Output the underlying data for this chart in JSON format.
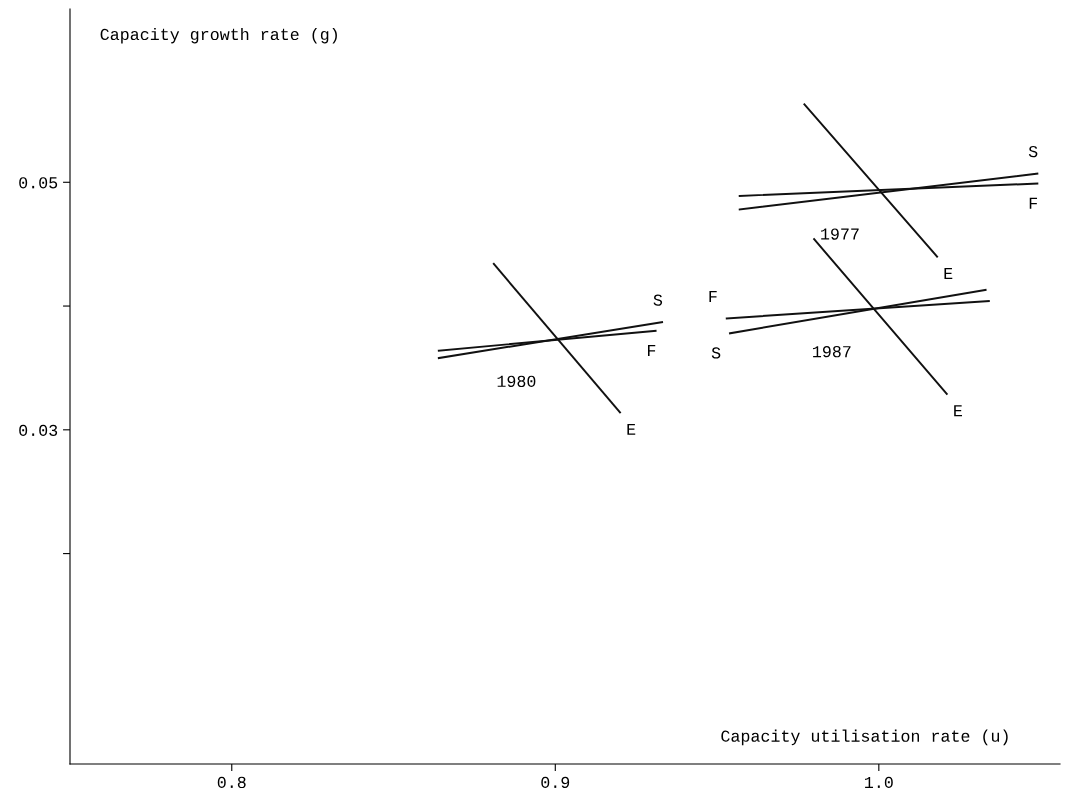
{
  "chart_data": {
    "type": "line",
    "xlabel": "Capacity utilisation rate (u)",
    "ylabel": "Capacity growth rate (g)",
    "xlim": [
      0.75,
      1.056
    ],
    "ylim": [
      0.003,
      0.064
    ],
    "xticks": [
      0.8,
      0.9,
      {
        "value": 1.0,
        "label": "1.0"
      }
    ],
    "yticks": [
      {
        "value": 0.02,
        "label": null
      },
      0.03,
      {
        "value": 0.04,
        "label": null
      },
      0.05
    ],
    "grid": false,
    "legend": false,
    "marker": "none",
    "line_style": "solid",
    "series": [
      {
        "color": "#111111",
        "x": [
          0.881,
          0.92
        ],
        "values": [
          0.0434,
          0.0314
        ]
      },
      {
        "color": "#111111",
        "x": [
          0.864,
          0.933
        ],
        "values": [
          0.0358,
          0.0387
        ]
      },
      {
        "color": "#111111",
        "x": [
          0.864,
          0.931
        ],
        "values": [
          0.0364,
          0.038
        ]
      },
      {
        "color": "#111111",
        "x": [
          0.977,
          1.018
        ],
        "values": [
          0.0563,
          0.044
        ]
      },
      {
        "color": "#111111",
        "x": [
          0.957,
          1.049
        ],
        "values": [
          0.0478,
          0.0507
        ]
      },
      {
        "color": "#111111",
        "x": [
          0.957,
          1.049
        ],
        "values": [
          0.0489,
          0.0499
        ]
      },
      {
        "color": "#111111",
        "x": [
          0.98,
          1.021
        ],
        "values": [
          0.0454,
          0.0329
        ]
      },
      {
        "color": "#111111",
        "x": [
          0.954,
          1.033
        ],
        "values": [
          0.0378,
          0.0413
        ]
      },
      {
        "color": "#111111",
        "x": [
          0.953,
          1.034
        ],
        "values": [
          0.039,
          0.0404
        ]
      }
    ],
    "annotations": [
      {
        "text": "S",
        "x": 0.933,
        "y": 0.0387
      },
      {
        "text": "F",
        "x": 0.931,
        "y": 0.038
      },
      {
        "text": "E",
        "x": 0.92,
        "y": 0.0314
      },
      {
        "text": "1980",
        "x": 0.9,
        "y": 0.0373
      },
      {
        "text": "S",
        "x": 1.049,
        "y": 0.0507
      },
      {
        "text": "F",
        "x": 1.049,
        "y": 0.0499
      },
      {
        "text": "E",
        "x": 1.018,
        "y": 0.044
      },
      {
        "text": "1977",
        "x": 1.0,
        "y": 0.0492
      },
      {
        "text": "F",
        "x": 0.953,
        "y": 0.039
      },
      {
        "text": "S",
        "x": 0.954,
        "y": 0.0378
      },
      {
        "text": "E",
        "x": 1.021,
        "y": 0.0329
      },
      {
        "text": "1987",
        "x": 0.9975,
        "y": 0.0397
      }
    ]
  }
}
